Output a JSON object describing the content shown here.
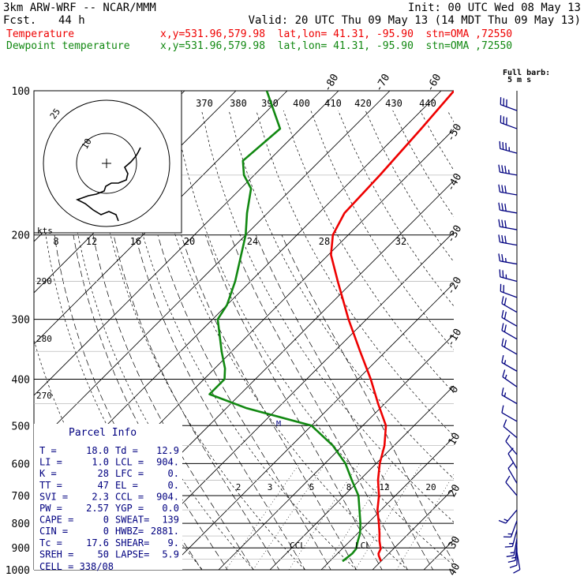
{
  "header": {
    "model": "3km ARW-WRF -- NCAR/MMM",
    "init": "Init: 00 UTC Wed 08 May 13",
    "fcst_label": "Fcst.",
    "fcst_hours": "44 h",
    "valid": "Valid: 20 UTC Thu 09 May 13 (14 MDT Thu 09 May 13)",
    "temp_label": "Temperature",
    "dew_label": "Dewpoint temperature",
    "temp_loc": "x,y=531.96,579.98  lat,lon= 41.31, -95.90  stn=OMA ,72550",
    "dew_loc": "x,y=531.96,579.98  lat,lon= 41.31, -95.90  stn=OMA ,72550",
    "barb_legend_1": "Full barb:",
    "barb_legend_2": "5 m s"
  },
  "colors": {
    "temperature": "#ee0000",
    "dewpoint": "#118811",
    "wind": "#000080"
  },
  "parcel": {
    "title": "Parcel Info",
    "rows": [
      [
        "T  =",
        "18.0",
        "Td =",
        "12.9"
      ],
      [
        "LI =",
        "1.0",
        "LCL =",
        "904."
      ],
      [
        "K  =",
        "28",
        "LFC =",
        "0."
      ],
      [
        "TT =",
        "47",
        "EL  =",
        "0."
      ],
      [
        "SVI =",
        "2.3",
        "CCL =",
        "904."
      ],
      [
        "PW =",
        "2.57",
        "YGP =",
        "0.0"
      ],
      [
        "CAPE =",
        "0",
        "SWEAT=",
        "139"
      ],
      [
        "CIN =",
        "0",
        "HWBZ=",
        "2881."
      ],
      [
        "Tc =",
        "17.6",
        "SHEAR=",
        "9."
      ],
      [
        "SREH =",
        "50",
        "LAPSE=",
        "5.9"
      ]
    ],
    "cell": "CELL = 338/08"
  },
  "annotations": {
    "ccl": "CCL",
    "lcl": "LCL",
    "m": "M"
  },
  "hodograph": {
    "unit": "kts",
    "ring_labels": [
      "10",
      "25"
    ],
    "temp_labels": [
      "8",
      "12",
      "16",
      "20",
      "24",
      "28",
      "32"
    ],
    "theta_labels": [
      "370",
      "380",
      "390",
      "400",
      "410",
      "420",
      "430",
      "440"
    ],
    "side_theta_labels": [
      "290",
      "280",
      "270"
    ]
  },
  "chart_data": {
    "type": "skew-t",
    "pressure_axis": {
      "ticks": [
        100,
        200,
        300,
        400,
        500,
        600,
        700,
        800,
        900,
        1000
      ],
      "scale": "log"
    },
    "temperature_axis": {
      "ticks": [
        -80,
        -70,
        -60,
        -50,
        -40,
        -30,
        -20,
        -10,
        0,
        10,
        20,
        30,
        40
      ],
      "unit": "C"
    },
    "mixing_ratio_labels": [
      "2",
      "3",
      "5",
      "8",
      "12",
      "20"
    ],
    "series": [
      {
        "name": "Temperature",
        "color": "#ee0000",
        "points": [
          [
            960,
            20.0
          ],
          [
            935,
            18.5
          ],
          [
            925,
            18.0
          ],
          [
            904,
            17.5
          ],
          [
            870,
            15.7
          ],
          [
            840,
            14.3
          ],
          [
            800,
            12.2
          ],
          [
            750,
            9.3
          ],
          [
            700,
            6.8
          ],
          [
            650,
            3.6
          ],
          [
            600,
            0.7
          ],
          [
            550,
            -1.9
          ],
          [
            500,
            -5.5
          ],
          [
            450,
            -11.3
          ],
          [
            400,
            -17.5
          ],
          [
            350,
            -25.0
          ],
          [
            300,
            -33.5
          ],
          [
            250,
            -43.0
          ],
          [
            220,
            -49.5
          ],
          [
            200,
            -53.0
          ],
          [
            180,
            -55.0
          ],
          [
            150,
            -55.5
          ],
          [
            120,
            -56.5
          ],
          [
            100,
            -57.5
          ]
        ]
      },
      {
        "name": "Dewpoint temperature",
        "color": "#118811",
        "points": [
          [
            960,
            12.5
          ],
          [
            925,
            12.9
          ],
          [
            904,
            12.7
          ],
          [
            870,
            11.5
          ],
          [
            840,
            10.5
          ],
          [
            800,
            8.6
          ],
          [
            750,
            5.8
          ],
          [
            700,
            2.8
          ],
          [
            650,
            -1.5
          ],
          [
            600,
            -6.0
          ],
          [
            550,
            -12.0
          ],
          [
            500,
            -20.0
          ],
          [
            460,
            -36.0
          ],
          [
            430,
            -46.0
          ],
          [
            400,
            -46.0
          ],
          [
            380,
            -48.0
          ],
          [
            350,
            -52.0
          ],
          [
            300,
            -59.0
          ],
          [
            280,
            -60.0
          ],
          [
            250,
            -63.0
          ],
          [
            220,
            -67.0
          ],
          [
            200,
            -70.0
          ],
          [
            180,
            -74.0
          ],
          [
            160,
            -78.0
          ],
          [
            150,
            -82.0
          ],
          [
            140,
            -85.0
          ],
          [
            120,
            -84.0
          ],
          [
            100,
            -94.0
          ]
        ]
      }
    ],
    "wind_barbs": [
      {
        "p": 110,
        "dir": 290,
        "spd": 16
      },
      {
        "p": 120,
        "dir": 290,
        "spd": 17
      },
      {
        "p": 135,
        "dir": 285,
        "spd": 18
      },
      {
        "p": 150,
        "dir": 280,
        "spd": 18
      },
      {
        "p": 165,
        "dir": 280,
        "spd": 17
      },
      {
        "p": 180,
        "dir": 280,
        "spd": 16
      },
      {
        "p": 195,
        "dir": 280,
        "spd": 16
      },
      {
        "p": 210,
        "dir": 280,
        "spd": 15
      },
      {
        "p": 230,
        "dir": 280,
        "spd": 14
      },
      {
        "p": 250,
        "dir": 285,
        "spd": 13
      },
      {
        "p": 270,
        "dir": 290,
        "spd": 12
      },
      {
        "p": 290,
        "dir": 300,
        "spd": 12
      },
      {
        "p": 310,
        "dir": 300,
        "spd": 11
      },
      {
        "p": 330,
        "dir": 300,
        "spd": 11
      },
      {
        "p": 355,
        "dir": 300,
        "spd": 10
      },
      {
        "p": 385,
        "dir": 300,
        "spd": 9
      },
      {
        "p": 415,
        "dir": 305,
        "spd": 9
      },
      {
        "p": 450,
        "dir": 300,
        "spd": 8
      },
      {
        "p": 490,
        "dir": 300,
        "spd": 7
      },
      {
        "p": 530,
        "dir": 310,
        "spd": 6
      },
      {
        "p": 575,
        "dir": 320,
        "spd": 5
      },
      {
        "p": 615,
        "dir": 330,
        "spd": 5
      },
      {
        "p": 660,
        "dir": 330,
        "spd": 6
      },
      {
        "p": 700,
        "dir": 320,
        "spd": 6
      },
      {
        "p": 750,
        "dir": 220,
        "spd": 8
      },
      {
        "p": 790,
        "dir": 200,
        "spd": 9
      },
      {
        "p": 825,
        "dir": 195,
        "spd": 9
      },
      {
        "p": 860,
        "dir": 190,
        "spd": 9
      },
      {
        "p": 880,
        "dir": 185,
        "spd": 8
      },
      {
        "p": 900,
        "dir": 180,
        "spd": 7
      },
      {
        "p": 920,
        "dir": 170,
        "spd": 5
      }
    ]
  }
}
